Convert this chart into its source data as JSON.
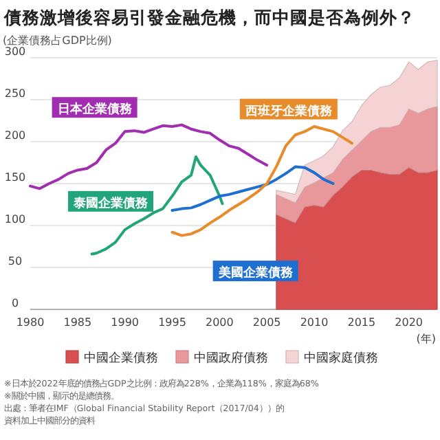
{
  "chart_data": {
    "type": "line",
    "title": "債務激增後容易引發金融危機，而中國是否為例外？",
    "ylabel": "(企業債務占GDP比例)",
    "xlabel": "(年)",
    "xlim": [
      1980,
      2023
    ],
    "xticks": [
      1980,
      1985,
      1990,
      1995,
      2000,
      2005,
      2010,
      2015,
      2020
    ],
    "ylim": [
      0,
      300
    ],
    "yticks": [
      0,
      50,
      100,
      150,
      200,
      250,
      300
    ],
    "grid": "y",
    "legend": "bottom",
    "stacked": true,
    "series": [
      {
        "name": "中國企業債務",
        "type": "area",
        "color": "#d94f4f",
        "x": [
          2006,
          2008,
          2009,
          2010,
          2011,
          2012,
          2013,
          2014,
          2015,
          2016,
          2017,
          2018,
          2019,
          2020,
          2021,
          2022,
          2023
        ],
        "values": [
          113,
          103,
          122,
          124,
          122,
          136,
          146,
          158,
          166,
          166,
          163,
          161,
          161,
          169,
          163,
          163,
          166
        ]
      },
      {
        "name": "中國政府債務",
        "type": "area",
        "color": "#e8979b",
        "x": [
          2006,
          2008,
          2009,
          2010,
          2011,
          2012,
          2013,
          2014,
          2015,
          2016,
          2017,
          2018,
          2019,
          2020,
          2021,
          2022,
          2023
        ],
        "values": [
          24,
          24,
          24,
          27,
          35,
          27,
          33,
          32,
          35,
          46,
          54,
          56,
          59,
          70,
          71,
          76,
          76
        ]
      },
      {
        "name": "中國家庭債務",
        "type": "area",
        "color": "#f5d3d5",
        "x": [
          2006,
          2008,
          2009,
          2010,
          2011,
          2012,
          2013,
          2014,
          2015,
          2016,
          2017,
          2018,
          2019,
          2020,
          2021,
          2022,
          2023
        ],
        "values": [
          5,
          10,
          26,
          26,
          26,
          31,
          34,
          34,
          42,
          44,
          48,
          50,
          56,
          56,
          52,
          56,
          55
        ]
      },
      {
        "name": "日本企業債務",
        "type": "line",
        "color": "#a12eb0",
        "x": [
          1980,
          1981,
          1982,
          1983,
          1984,
          1985,
          1986,
          1987,
          1988,
          1989,
          1990,
          1991,
          1992,
          1993,
          1994,
          1995,
          1996,
          1997,
          1998,
          1999,
          2000,
          2001,
          2002,
          2003,
          2004,
          2005
        ],
        "values": [
          147,
          144,
          150,
          155,
          162,
          166,
          168,
          175,
          190,
          198,
          212,
          213,
          211,
          215,
          219,
          218,
          220,
          215,
          212,
          210,
          202,
          195,
          192,
          185,
          178,
          172
        ]
      },
      {
        "name": "泰國企業債務",
        "type": "line",
        "color": "#22a57a",
        "x": [
          1986.5,
          1987,
          1988,
          1989,
          1990,
          1991,
          1992,
          1993,
          1994,
          1995,
          1996,
          1997,
          1997.5,
          1998,
          1999,
          2000,
          2000.3
        ],
        "values": [
          66,
          67,
          72,
          80,
          95,
          102,
          108,
          115,
          120,
          135,
          152,
          160,
          182,
          172,
          160,
          135,
          126
        ]
      },
      {
        "name": "美國企業債務",
        "type": "line",
        "color": "#1f6fd1",
        "x": [
          1995,
          1996,
          1997,
          1998,
          1999,
          2000,
          2001,
          2002,
          2003,
          2004,
          2005,
          2006,
          2007,
          2008,
          2009,
          2010,
          2011,
          2012
        ],
        "values": [
          118,
          120,
          121,
          125,
          130,
          135,
          137,
          140,
          143,
          146,
          149,
          155,
          162,
          170,
          169,
          163,
          155,
          150
        ]
      },
      {
        "name": "西班牙企業債務",
        "type": "line",
        "color": "#e88b2a",
        "x": [
          1995,
          1996,
          1997,
          1998,
          1999,
          2000,
          2001,
          2002,
          2003,
          2004,
          2005,
          2006,
          2007,
          2008,
          2009,
          2010,
          2011,
          2012,
          2013,
          2014
        ],
        "values": [
          92,
          88,
          90,
          95,
          103,
          110,
          118,
          125,
          132,
          140,
          150,
          170,
          195,
          208,
          212,
          218,
          215,
          212,
          205,
          198
        ]
      }
    ],
    "annotations": [
      "※日本於2022年底的債務占GDP之比例：政府為228%，企業為118%，家庭為68%",
      "※關於中國，顯示的是總債務。",
      "出處：筆者在IMF（Global Financial Stability Report（2017/04））的",
      "資料加上中國部分的資料"
    ]
  }
}
